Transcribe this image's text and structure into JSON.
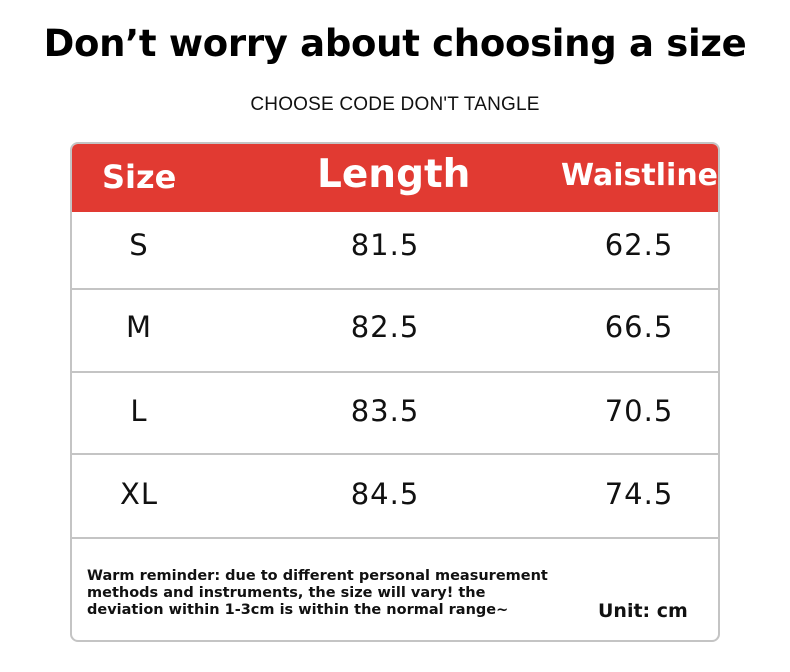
{
  "header": {
    "title": "Don’t worry about choosing a size",
    "subtitle": "CHOOSE CODE DON'T TANGLE"
  },
  "table": {
    "columns": [
      "Size",
      "Length",
      "Waistline"
    ],
    "rows": [
      [
        "S",
        "81.5",
        "62.5"
      ],
      [
        "M",
        "82.5",
        "66.5"
      ],
      [
        "L",
        "83.5",
        "70.5"
      ],
      [
        "XL",
        "84.5",
        "74.5"
      ]
    ],
    "header_color": "#e13a32"
  },
  "footer": {
    "reminder_lines": [
      "Warm reminder: due to different personal measurement",
      "methods and instruments, the size will vary! the",
      "deviation within 1-3cm is within the normal range~"
    ],
    "unit": "Unit: cm"
  }
}
